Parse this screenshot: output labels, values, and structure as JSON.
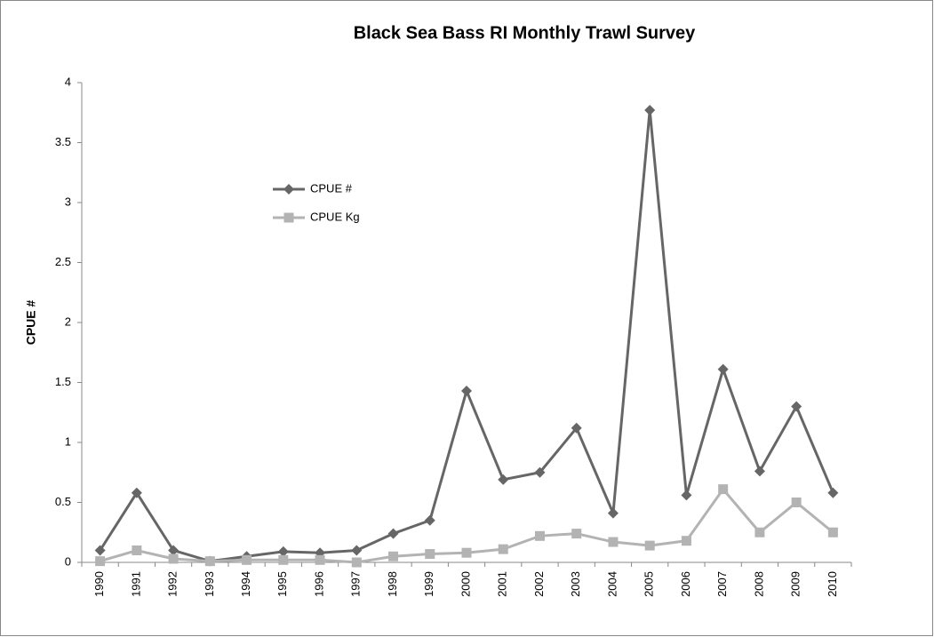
{
  "chart_data": {
    "type": "line",
    "title": "Black Sea Bass RI Monthly Trawl Survey",
    "y_label": "CPUE #",
    "categories": [
      "1990",
      "1991",
      "1992",
      "1993",
      "1994",
      "1995",
      "1996",
      "1997",
      "1998",
      "1999",
      "2000",
      "2001",
      "2002",
      "2003",
      "2004",
      "2005",
      "2006",
      "2007",
      "2008",
      "2009",
      "2010"
    ],
    "series": [
      {
        "name": "CPUE #",
        "color": "#666666",
        "marker": "diamond",
        "values": [
          0.1,
          0.58,
          0.1,
          0.01,
          0.05,
          0.09,
          0.08,
          0.1,
          0.24,
          0.35,
          1.43,
          0.69,
          0.75,
          1.12,
          0.41,
          3.77,
          0.56,
          1.61,
          0.76,
          1.3,
          0.58
        ]
      },
      {
        "name": "CPUE Kg",
        "color": "#b3b3b3",
        "marker": "square",
        "values": [
          0.01,
          0.1,
          0.03,
          0.01,
          0.02,
          0.02,
          0.02,
          0.0,
          0.05,
          0.07,
          0.08,
          0.11,
          0.22,
          0.24,
          0.17,
          0.14,
          0.18,
          0.61,
          0.25,
          0.5,
          0.25
        ]
      }
    ],
    "ylim": [
      0,
      4
    ],
    "yticks": [
      0,
      0.5,
      1,
      1.5,
      2,
      2.5,
      3,
      3.5,
      4
    ],
    "grid": false,
    "legend": "upper left"
  }
}
